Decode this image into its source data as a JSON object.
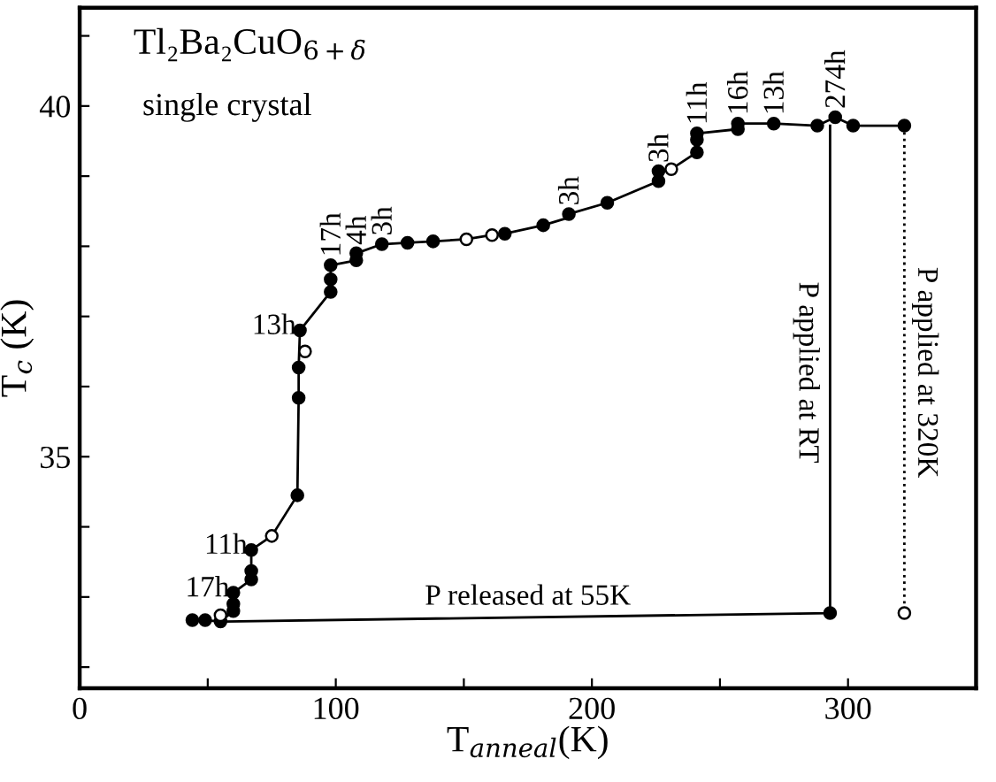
{
  "chart_data": {
    "type": "line",
    "title": "Tl₂Ba₂CuO$_{6+δ}$",
    "subtitle": "single crystal",
    "xlabel": "T$_{anneal}$(K)",
    "ylabel": "T$_{c}$ (K)",
    "xlim": [
      0,
      350
    ],
    "ylim": [
      31.7,
      41.4
    ],
    "xticks": [
      0,
      {
        "value": 50,
        "label": null
      },
      100,
      {
        "value": 150,
        "label": null
      },
      200,
      {
        "value": 250,
        "label": null
      },
      300
    ],
    "yticks": [
      {
        "value": 32,
        "label": null
      },
      {
        "value": 33,
        "label": null
      },
      {
        "value": 34,
        "label": null
      },
      35,
      {
        "value": 36,
        "label": null
      },
      {
        "value": 37,
        "label": null
      },
      {
        "value": 38,
        "label": null
      },
      {
        "value": 39,
        "label": null
      },
      40,
      {
        "value": 41,
        "label": null
      }
    ],
    "grid": false,
    "series": [
      {
        "color": "#000000",
        "marker": "none",
        "line_style": "solid",
        "x": [
          44,
          49,
          55,
          60,
          60,
          60,
          67,
          67,
          67,
          75,
          85,
          85.5,
          85.5,
          86,
          98,
          98,
          98,
          108,
          108,
          118,
          128,
          138,
          151,
          161,
          166,
          181,
          191,
          191,
          206,
          226,
          226,
          231,
          241,
          241,
          241,
          257,
          257,
          271,
          288,
          295,
          302,
          322
        ],
        "values": [
          32.67,
          32.67,
          32.65,
          32.8,
          32.9,
          33.06,
          33.25,
          33.37,
          33.67,
          33.87,
          34.45,
          35.84,
          36.27,
          36.8,
          37.35,
          37.53,
          37.73,
          37.8,
          37.9,
          38.03,
          38.05,
          38.07,
          38.1,
          38.16,
          38.18,
          38.3,
          38.41,
          38.46,
          38.62,
          38.93,
          39.07,
          39.1,
          39.34,
          39.52,
          39.61,
          39.67,
          39.75,
          39.75,
          39.72,
          39.84,
          39.72,
          39.72
        ]
      },
      {
        "color": "#000000",
        "marker": "none",
        "line_style": "solid",
        "x": [
          293,
          293,
          55
        ],
        "values": [
          39.72,
          32.77,
          32.65
        ]
      },
      {
        "color": "#000000",
        "marker": "none",
        "line_style": "dotted",
        "x": [
          322,
          322
        ],
        "values": [
          39.72,
          32.77
        ]
      },
      {
        "type": "scatter",
        "color": "#000000",
        "marker": "circle",
        "x": [
          44,
          49,
          55,
          60,
          60,
          60,
          67,
          67,
          67,
          85,
          85.5,
          85.5,
          86,
          98,
          98,
          98,
          108,
          108,
          118,
          128,
          138,
          166,
          181,
          191,
          206,
          226,
          226,
          241,
          241,
          241,
          257,
          257,
          271,
          288,
          295,
          302,
          322,
          293
        ],
        "values": [
          32.67,
          32.67,
          32.65,
          32.8,
          32.9,
          33.06,
          33.25,
          33.37,
          33.67,
          34.45,
          35.84,
          36.27,
          36.8,
          37.35,
          37.53,
          37.73,
          37.8,
          37.9,
          38.03,
          38.05,
          38.07,
          38.18,
          38.3,
          38.46,
          38.62,
          38.93,
          39.07,
          39.34,
          39.52,
          39.61,
          39.67,
          39.75,
          39.75,
          39.72,
          39.84,
          39.72,
          39.72,
          32.77
        ]
      },
      {
        "type": "scatter",
        "color": "#ffffff",
        "marker": "circle",
        "x": [
          55,
          75,
          88,
          151,
          161,
          231,
          322
        ],
        "values": [
          32.74,
          33.87,
          36.5,
          38.1,
          38.16,
          39.1,
          32.77
        ]
      }
    ],
    "annotations": [
      {
        "text": "17h",
        "x": 98,
        "y": 37.73
      },
      {
        "text": "4h",
        "x": 108,
        "y": 37.9
      },
      {
        "text": "3h",
        "x": 118,
        "y": 38.03
      },
      {
        "text": "3h",
        "x": 191,
        "y": 38.46
      },
      {
        "text": "3h",
        "x": 226,
        "y": 39.07
      },
      {
        "text": "11h",
        "x": 241,
        "y": 39.61
      },
      {
        "text": "16h",
        "x": 257,
        "y": 39.75
      },
      {
        "text": "13h",
        "x": 271,
        "y": 39.75
      },
      {
        "text": "274h",
        "x": 295,
        "y": 39.84
      },
      {
        "text": "13h",
        "x": 86,
        "y": 36.8
      },
      {
        "text": "11h",
        "x": 67,
        "y": 33.67
      },
      {
        "text": "17h",
        "x": 60,
        "y": 33.06
      },
      {
        "text": "P released at 55K",
        "x": 175,
        "y": 32.7
      },
      {
        "text": "P applied at RT",
        "x": 293,
        "y": 36.2
      },
      {
        "text": "P applied at 320K",
        "x": 322,
        "y": 36.2
      }
    ]
  }
}
